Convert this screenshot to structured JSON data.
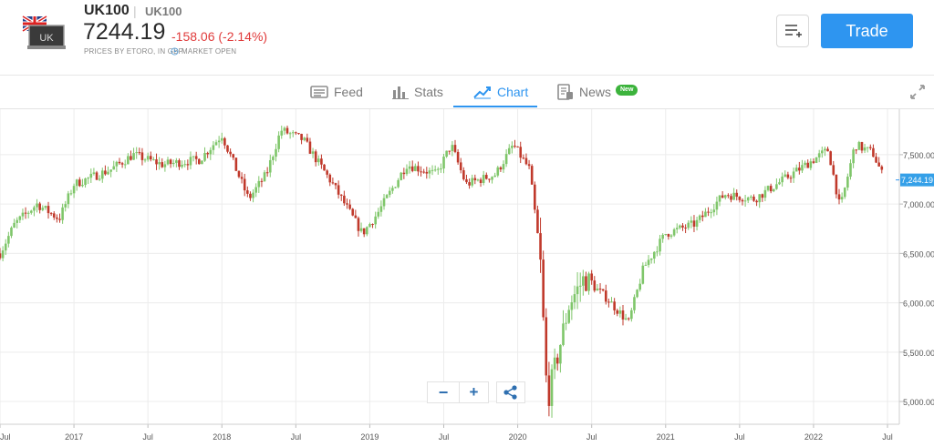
{
  "header": {
    "symbol": "UK100",
    "separator": "|",
    "ticker": "UK100",
    "price": "7244.19",
    "change": "-158.06 (-2.14%)",
    "prices_note": "PRICES BY ETORO, IN GBP",
    "market_status": "MARKET OPEN",
    "flag_code": "UK",
    "trade_label": "Trade"
  },
  "tabs": [
    {
      "label": "Feed",
      "icon": "feed-icon"
    },
    {
      "label": "Stats",
      "icon": "stats-icon"
    },
    {
      "label": "Chart",
      "icon": "chart-icon",
      "active": true
    },
    {
      "label": "News",
      "icon": "news-icon",
      "badge": "New"
    }
  ],
  "controls": {
    "zoom_out": "−",
    "zoom_in": "+"
  },
  "colors": {
    "accent": "#2e95f0",
    "up": "#7fc66a",
    "down": "#c0392b",
    "negative_text": "#e03b3b",
    "badge": "#3cb33c"
  },
  "chart_data": {
    "type": "candlestick",
    "x_tick_labels": [
      "Jul",
      "2017",
      "Jul",
      "2018",
      "Jul",
      "2019",
      "Jul",
      "2020",
      "Jul",
      "2021",
      "Jul",
      "2022",
      "Jul"
    ],
    "y_tick_labels": [
      "7,500.00",
      "7,000.00",
      "6,500.00",
      "6,000.00",
      "5,500.00",
      "5,000.00"
    ],
    "y_ticks": [
      7500,
      7000,
      6500,
      6000,
      5500,
      5000
    ],
    "ylim": [
      4770,
      7960
    ],
    "x_range": [
      2016.5,
      2022.58
    ],
    "last_price_label": "7,244.19",
    "last_price": 7244.19,
    "key_points": [
      [
        2016.5,
        6500
      ],
      [
        2016.6,
        6800
      ],
      [
        2016.75,
        7000
      ],
      [
        2016.9,
        6850
      ],
      [
        2017.0,
        7200
      ],
      [
        2017.25,
        7350
      ],
      [
        2017.4,
        7500
      ],
      [
        2017.6,
        7400
      ],
      [
        2017.85,
        7450
      ],
      [
        2018.0,
        7700
      ],
      [
        2018.18,
        7050
      ],
      [
        2018.3,
        7300
      ],
      [
        2018.4,
        7750
      ],
      [
        2018.55,
        7650
      ],
      [
        2018.75,
        7200
      ],
      [
        2018.95,
        6700
      ],
      [
        2019.05,
        6900
      ],
      [
        2019.25,
        7400
      ],
      [
        2019.45,
        7300
      ],
      [
        2019.55,
        7600
      ],
      [
        2019.65,
        7200
      ],
      [
        2019.85,
        7300
      ],
      [
        2019.97,
        7600
      ],
      [
        2020.08,
        7350
      ],
      [
        2020.15,
        6500
      ],
      [
        2020.2,
        5000
      ],
      [
        2020.35,
        6000
      ],
      [
        2020.45,
        6250
      ],
      [
        2020.6,
        6050
      ],
      [
        2020.75,
        5800
      ],
      [
        2020.85,
        6350
      ],
      [
        2021.0,
        6700
      ],
      [
        2021.2,
        6800
      ],
      [
        2021.4,
        7100
      ],
      [
        2021.6,
        7050
      ],
      [
        2021.8,
        7250
      ],
      [
        2021.95,
        7400
      ],
      [
        2022.1,
        7550
      ],
      [
        2022.18,
        6950
      ],
      [
        2022.28,
        7600
      ],
      [
        2022.4,
        7520
      ],
      [
        2022.48,
        7244
      ]
    ]
  }
}
